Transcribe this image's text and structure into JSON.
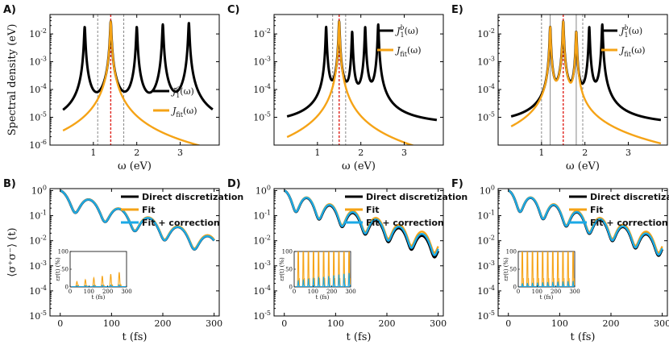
{
  "colors": {
    "black": "#000000",
    "orange": "#F5A316",
    "cyan": "#1BA9E6",
    "red": "#E0221B",
    "grey": "#888888"
  },
  "chart_data": [
    {
      "panel": "A)",
      "type": "line",
      "xlabel": "ω (eV)",
      "ylabel": "Spectral density (eV)",
      "scale": "log",
      "xlim": [
        0,
        3.9
      ],
      "ylim": [
        1e-06,
        0.05
      ],
      "xticks": [
        {
          "v": 1,
          "t": "1"
        },
        {
          "v": 2,
          "t": "2"
        },
        {
          "v": 3,
          "t": "3"
        }
      ],
      "yticks": [
        {
          "e": -6,
          "t": "10"
        },
        {
          "e": -5,
          "t": "10"
        },
        {
          "e": -4,
          "t": "10"
        },
        {
          "e": -3,
          "t": "10"
        },
        {
          "e": -2,
          "t": "10"
        }
      ],
      "ytick_exponents": [
        "-6",
        "-5",
        "-4",
        "-3",
        "-2"
      ],
      "series": [
        {
          "name": "J1a",
          "label_main": "J",
          "label_sup": "a",
          "label_sub": "1",
          "label_tail": "(ω)",
          "color": "black",
          "domain": [
            0.3,
            3.75
          ],
          "peaks": [
            [
              0.8,
              0.018
            ],
            [
              1.4,
              0.028
            ],
            [
              2.0,
              0.018
            ],
            [
              2.6,
              0.022
            ],
            [
              3.2,
              0.025
            ]
          ],
          "gamma": 0.012,
          "base": 3e-06
        },
        {
          "name": "Jfit",
          "label_main": "J",
          "label_sub": "fit",
          "label_tail": "(ω)",
          "color": "orange",
          "domain": [
            0.3,
            3.75
          ],
          "peaks": [
            [
              1.4,
              0.028
            ]
          ],
          "gamma": 0.012,
          "base": 0
        }
      ],
      "vlines": [
        {
          "x": 1.1,
          "style": "dashed"
        },
        {
          "x": 1.4,
          "style": "red"
        },
        {
          "x": 1.7,
          "style": "dashed"
        }
      ]
    },
    {
      "panel": "C)",
      "type": "line",
      "xlabel": "ω (eV)",
      "ylabel": "",
      "scale": "log",
      "xlim": [
        0,
        3.9
      ],
      "ylim": [
        1e-06,
        0.05
      ],
      "xticks": [
        {
          "v": 1,
          "t": "1"
        },
        {
          "v": 2,
          "t": "2"
        },
        {
          "v": 3,
          "t": "3"
        }
      ],
      "yticks": [
        {
          "e": -5,
          "t": "10"
        },
        {
          "e": -4,
          "t": "10"
        },
        {
          "e": -3,
          "t": "10"
        },
        {
          "e": -2,
          "t": "10"
        }
      ],
      "ytick_exponents": [
        "-5",
        "-4",
        "-3",
        "-2"
      ],
      "series": [
        {
          "name": "J1b",
          "label_main": "J",
          "label_sup": "b",
          "label_sub": "1",
          "label_tail": "(ω)",
          "color": "black",
          "domain": [
            0.3,
            3.75
          ],
          "peaks": [
            [
              1.2,
              0.018
            ],
            [
              1.5,
              0.028
            ],
            [
              1.8,
              0.012
            ],
            [
              2.1,
              0.018
            ],
            [
              2.4,
              0.022
            ]
          ],
          "gamma": 0.01,
          "base": 5e-06
        },
        {
          "name": "Jfit",
          "label_main": "J",
          "label_sub": "fit",
          "label_tail": "(ω)",
          "color": "orange",
          "domain": [
            0.3,
            3.75
          ],
          "peaks": [
            [
              1.5,
              0.028
            ]
          ],
          "gamma": 0.01,
          "base": 0
        }
      ],
      "vlines": [
        {
          "x": 1.35,
          "style": "dashed"
        },
        {
          "x": 1.5,
          "style": "red"
        },
        {
          "x": 1.65,
          "style": "dashed"
        }
      ]
    },
    {
      "panel": "E)",
      "type": "line",
      "xlabel": "ω (eV)",
      "ylabel": "",
      "scale": "log",
      "xlim": [
        0,
        3.9
      ],
      "ylim": [
        1e-06,
        0.05
      ],
      "xticks": [
        {
          "v": 1,
          "t": "1"
        },
        {
          "v": 2,
          "t": "2"
        },
        {
          "v": 3,
          "t": "3"
        }
      ],
      "yticks": [
        {
          "e": -5,
          "t": "10"
        },
        {
          "e": -4,
          "t": "10"
        },
        {
          "e": -3,
          "t": "10"
        },
        {
          "e": -2,
          "t": "10"
        }
      ],
      "ytick_exponents": [
        "-5",
        "-4",
        "-3",
        "-2"
      ],
      "series": [
        {
          "name": "J1b",
          "label_main": "J",
          "label_sup": "b",
          "label_sub": "1",
          "label_tail": "(ω)",
          "color": "black",
          "domain": [
            0.3,
            3.75
          ],
          "peaks": [
            [
              1.2,
              0.018
            ],
            [
              1.5,
              0.028
            ],
            [
              1.8,
              0.012
            ],
            [
              2.1,
              0.018
            ],
            [
              2.4,
              0.022
            ]
          ],
          "gamma": 0.01,
          "base": 5e-06
        },
        {
          "name": "Jfit",
          "label_main": "J",
          "label_sub": "fit",
          "label_tail": "(ω)",
          "color": "orange",
          "domain": [
            0.3,
            3.75
          ],
          "peaks": [
            [
              1.2,
              0.018
            ],
            [
              1.5,
              0.028
            ],
            [
              1.8,
              0.012
            ]
          ],
          "gamma": 0.01,
          "base": 0
        }
      ],
      "vlines": [
        {
          "x": 1.0,
          "style": "dashed"
        },
        {
          "x": 1.2,
          "style": "solid"
        },
        {
          "x": 1.5,
          "style": "red"
        },
        {
          "x": 1.8,
          "style": "solid"
        },
        {
          "x": 1.95,
          "style": "dashed"
        }
      ]
    },
    {
      "panel": "B)",
      "type": "line",
      "xlabel": "t (fs)",
      "ylabel": "⟨σ⁺σ⁻⟩ (t)",
      "scale": "log",
      "xlim": [
        -20,
        310
      ],
      "ylim": [
        1e-05,
        1.2
      ],
      "xticks": [
        {
          "v": 0,
          "t": "0"
        },
        {
          "v": 100,
          "t": "100"
        },
        {
          "v": 200,
          "t": "200"
        },
        {
          "v": 300,
          "t": "300"
        }
      ],
      "yticks": [
        {
          "e": -5,
          "t": "10"
        },
        {
          "e": -4,
          "t": "10"
        },
        {
          "e": -3,
          "t": "10"
        },
        {
          "e": -2,
          "t": "10"
        },
        {
          "e": -1,
          "t": "10"
        },
        {
          "e": 0,
          "t": "10"
        }
      ],
      "ytick_exponents": [
        "-5",
        "-4",
        "-3",
        "-2",
        "-1",
        "0"
      ],
      "decay": {
        "alpha": 0.0145,
        "depth": 0.8,
        "period": 58,
        "drift": [
          0,
          0,
          0
        ]
      },
      "series": [
        {
          "name": "Direct discretization",
          "color": "black",
          "offset": 0.0
        },
        {
          "name": "Fit",
          "color": "orange",
          "offset": 0.05
        },
        {
          "name": "Fit + correction",
          "color": "cyan",
          "offset": 0.0
        }
      ],
      "inset": {
        "xlabel": "t (fs)",
        "ylabel": "εr(t) (%)",
        "xticks": [
          "0",
          "100",
          "200",
          "300"
        ],
        "yticks": [
          "0",
          "50",
          "100"
        ],
        "ymax": 100,
        "series": [
          {
            "name": "Fit",
            "color": "orange",
            "amp": [
              10,
              45
            ],
            "period": 45
          },
          {
            "name": "Fit + correction",
            "color": "cyan",
            "amp": [
              2,
              5
            ],
            "period": 45
          }
        ]
      }
    },
    {
      "panel": "D)",
      "type": "line",
      "xlabel": "t (fs)",
      "ylabel": "",
      "scale": "log",
      "xlim": [
        -20,
        310
      ],
      "ylim": [
        1e-05,
        1.2
      ],
      "xticks": [
        {
          "v": 0,
          "t": "0"
        },
        {
          "v": 100,
          "t": "100"
        },
        {
          "v": 200,
          "t": "200"
        },
        {
          "v": 300,
          "t": "300"
        }
      ],
      "yticks": [
        {
          "e": -5,
          "t": "10"
        },
        {
          "e": -4,
          "t": "10"
        },
        {
          "e": -3,
          "t": "10"
        },
        {
          "e": -2,
          "t": "10"
        },
        {
          "e": -1,
          "t": "10"
        },
        {
          "e": 0,
          "t": "10"
        }
      ],
      "ytick_exponents": [
        "-5",
        "-4",
        "-3",
        "-2",
        "-1",
        "0"
      ],
      "decay": {
        "alpha": 0.0145,
        "depth": 0.8,
        "period": 45
      },
      "series": [
        {
          "name": "Direct discretization",
          "color": "black",
          "offset": -0.12
        },
        {
          "name": "Fit",
          "color": "orange",
          "offset": 0.08
        },
        {
          "name": "Fit + correction",
          "color": "cyan",
          "offset": -0.04
        }
      ],
      "inset": {
        "xlabel": "t (fs)",
        "ylabel": "εr(t) (%)",
        "xticks": [
          "0",
          "100",
          "200",
          "300"
        ],
        "yticks": [
          "0",
          "50",
          "100"
        ],
        "ymax": 100,
        "series": [
          {
            "name": "Fit",
            "color": "orange",
            "amp": [
              100,
              100
            ],
            "period": 27
          },
          {
            "name": "Fit + correction",
            "color": "cyan",
            "amp": [
              15,
              40
            ],
            "period": 27
          }
        ]
      }
    },
    {
      "panel": "F)",
      "type": "line",
      "xlabel": "t (fs)",
      "ylabel": "",
      "scale": "log",
      "xlim": [
        -20,
        310
      ],
      "ylim": [
        1e-05,
        1.2
      ],
      "xticks": [
        {
          "v": 0,
          "t": "0"
        },
        {
          "v": 100,
          "t": "100"
        },
        {
          "v": 200,
          "t": "200"
        },
        {
          "v": 300,
          "t": "300"
        }
      ],
      "yticks": [
        {
          "e": -5,
          "t": "10"
        },
        {
          "e": -4,
          "t": "10"
        },
        {
          "e": -3,
          "t": "10"
        },
        {
          "e": -2,
          "t": "10"
        },
        {
          "e": -1,
          "t": "10"
        },
        {
          "e": 0,
          "t": "10"
        }
      ],
      "ytick_exponents": [
        "-5",
        "-4",
        "-3",
        "-2",
        "-1",
        "0"
      ],
      "decay": {
        "alpha": 0.0145,
        "depth": 0.8,
        "period": 45
      },
      "series": [
        {
          "name": "Direct discretization",
          "color": "black",
          "offset": -0.06
        },
        {
          "name": "Fit",
          "color": "orange",
          "offset": 0.08
        },
        {
          "name": "Fit + correction",
          "color": "cyan",
          "offset": -0.02
        }
      ],
      "inset": {
        "xlabel": "t (fs)",
        "ylabel": "εr(t) (%)",
        "xticks": [
          "0",
          "100",
          "200",
          "300"
        ],
        "yticks": [
          "0",
          "50",
          "100"
        ],
        "ymax": 100,
        "series": [
          {
            "name": "Fit",
            "color": "orange",
            "amp": [
              100,
              100
            ],
            "period": 27
          },
          {
            "name": "Fit + correction",
            "color": "cyan",
            "amp": [
              8,
              15
            ],
            "period": 27
          }
        ]
      }
    }
  ]
}
